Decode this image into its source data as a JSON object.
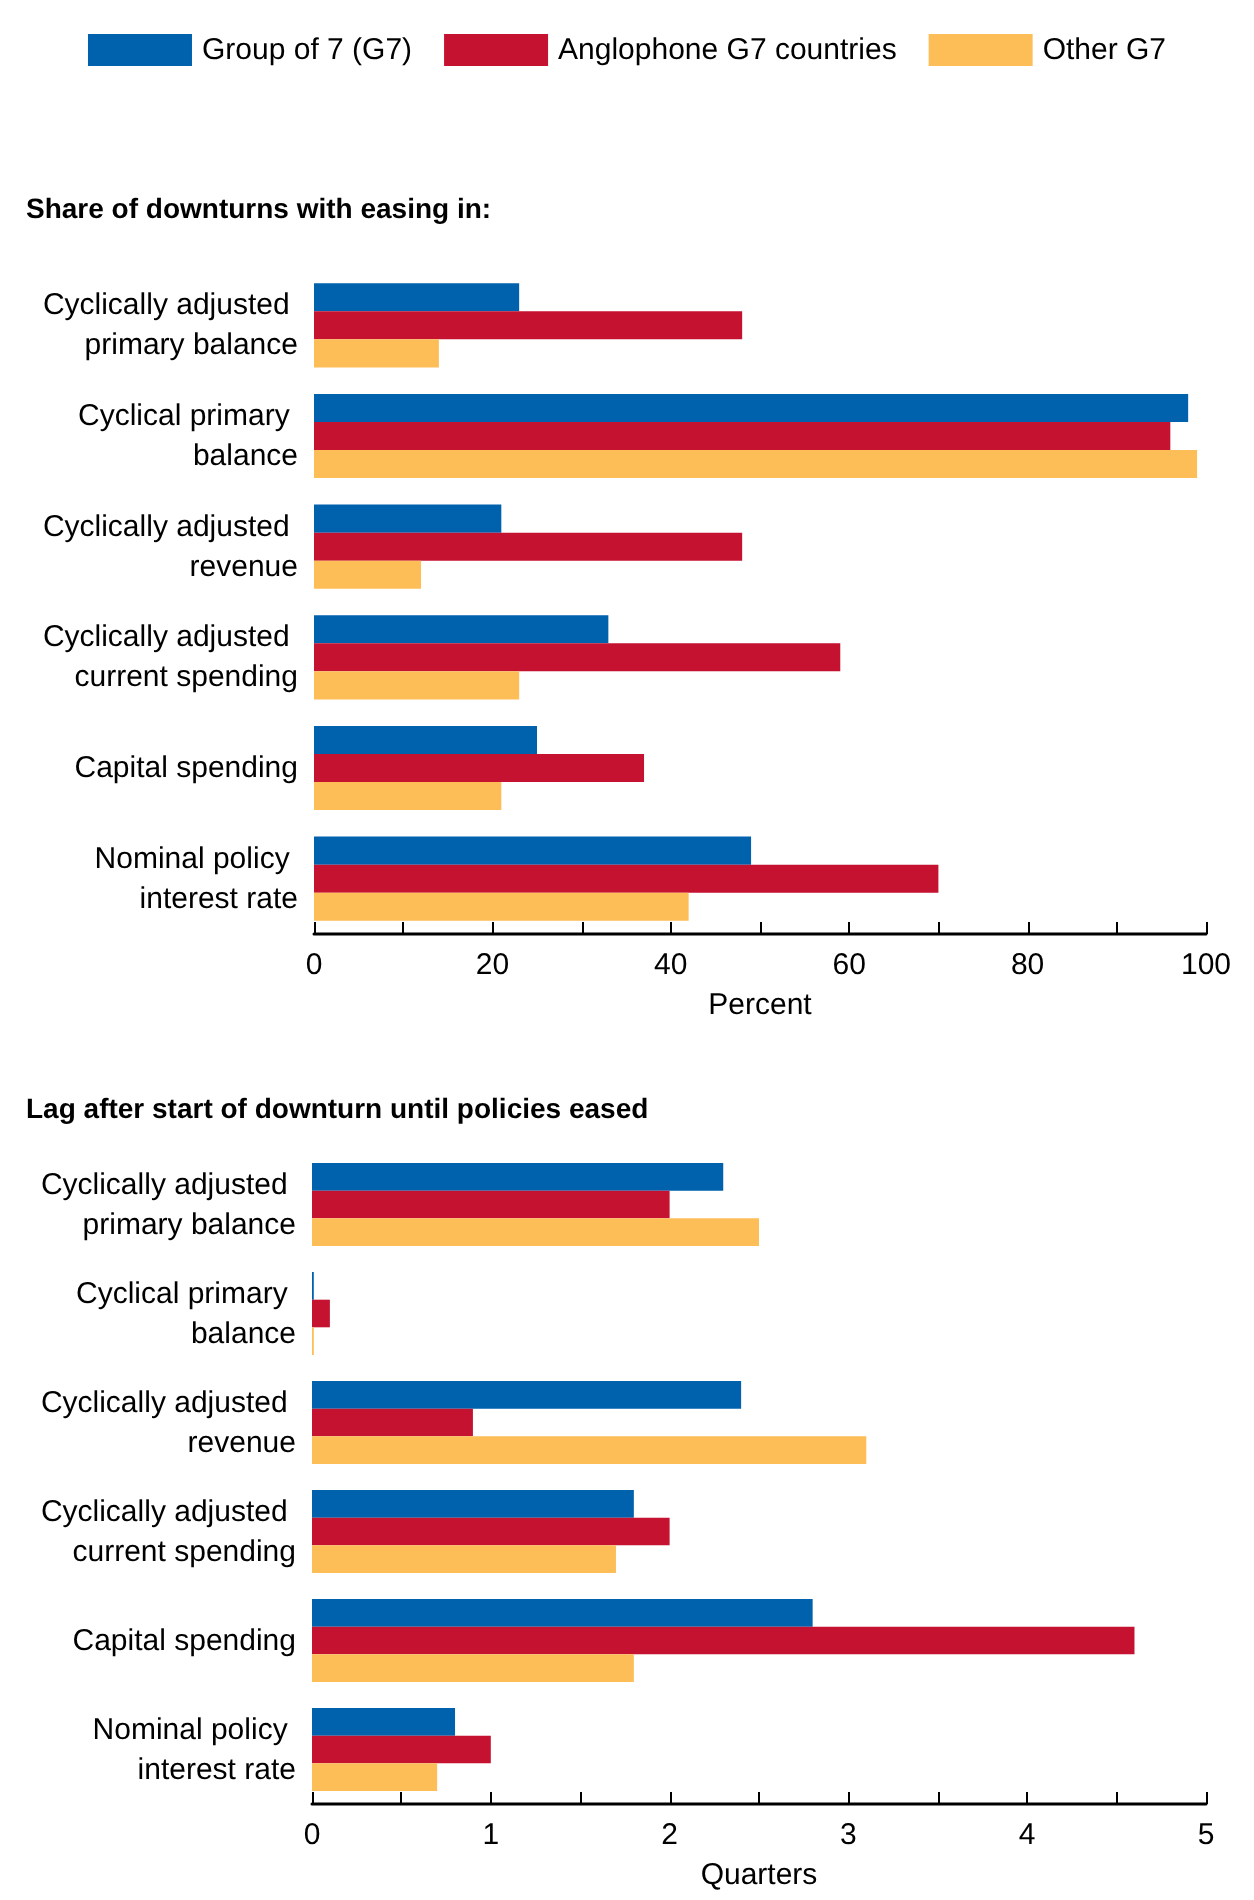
{
  "chart_data": [
    {
      "type": "bar",
      "orientation": "horizontal",
      "title": "Share of downturns with easing in:",
      "xlabel": "Percent",
      "legend": "top",
      "grid": false,
      "categories": [
        "Cyclically adjusted primary balance",
        "Cyclical primary balance",
        "Cyclically adjusted revenue",
        "Cyclically adjusted current spending",
        "Capital spending",
        "Nominal policy interest rate"
      ],
      "xlim": [
        0,
        100
      ],
      "xticks": [
        0,
        {
          "value": 10,
          "label": null
        },
        20,
        {
          "value": 30,
          "label": null
        },
        40,
        {
          "value": 50,
          "label": null
        },
        60,
        {
          "value": 70,
          "label": null
        },
        80,
        {
          "value": 90,
          "label": null
        },
        100
      ],
      "series": [
        {
          "name": "Group of 7 (G7)",
          "color": "#0061ad",
          "values": [
            23,
            98,
            21,
            33,
            25,
            49
          ]
        },
        {
          "name": "Anglophone G7 countries",
          "color": "#c41230",
          "values": [
            48,
            96,
            48,
            59,
            37,
            70
          ]
        },
        {
          "name": "Other G7",
          "color": "#fdbe57",
          "values": [
            14,
            99,
            12,
            23,
            21,
            42
          ]
        }
      ]
    },
    {
      "type": "bar",
      "orientation": "horizontal",
      "title": "Lag after start of downturn until policies eased",
      "xlabel": "Quarters",
      "grid": false,
      "categories": [
        "Cyclically adjusted primary balance",
        "Cyclical primary balance",
        "Cyclically adjusted revenue",
        "Cyclically adjusted current spending",
        "Capital spending",
        "Nominal policy interest rate"
      ],
      "xlim": [
        0,
        5
      ],
      "xticks": [
        0,
        {
          "value": 0.5,
          "label": null
        },
        1,
        {
          "value": 1.5,
          "label": null
        },
        2,
        {
          "value": 2.5,
          "label": null
        },
        3,
        {
          "value": 3.5,
          "label": null
        },
        4,
        {
          "value": 4.5,
          "label": null
        },
        5
      ],
      "series": [
        {
          "color": "#0061ad",
          "values": [
            2.3,
            0.01,
            2.4,
            1.8,
            2.8,
            0.8
          ]
        },
        {
          "color": "#c41230",
          "values": [
            2.0,
            0.1,
            0.9,
            2.0,
            4.6,
            1.0
          ]
        },
        {
          "color": "#fdbe57",
          "values": [
            2.5,
            0.01,
            3.1,
            1.7,
            1.8,
            0.7
          ]
        }
      ]
    }
  ]
}
